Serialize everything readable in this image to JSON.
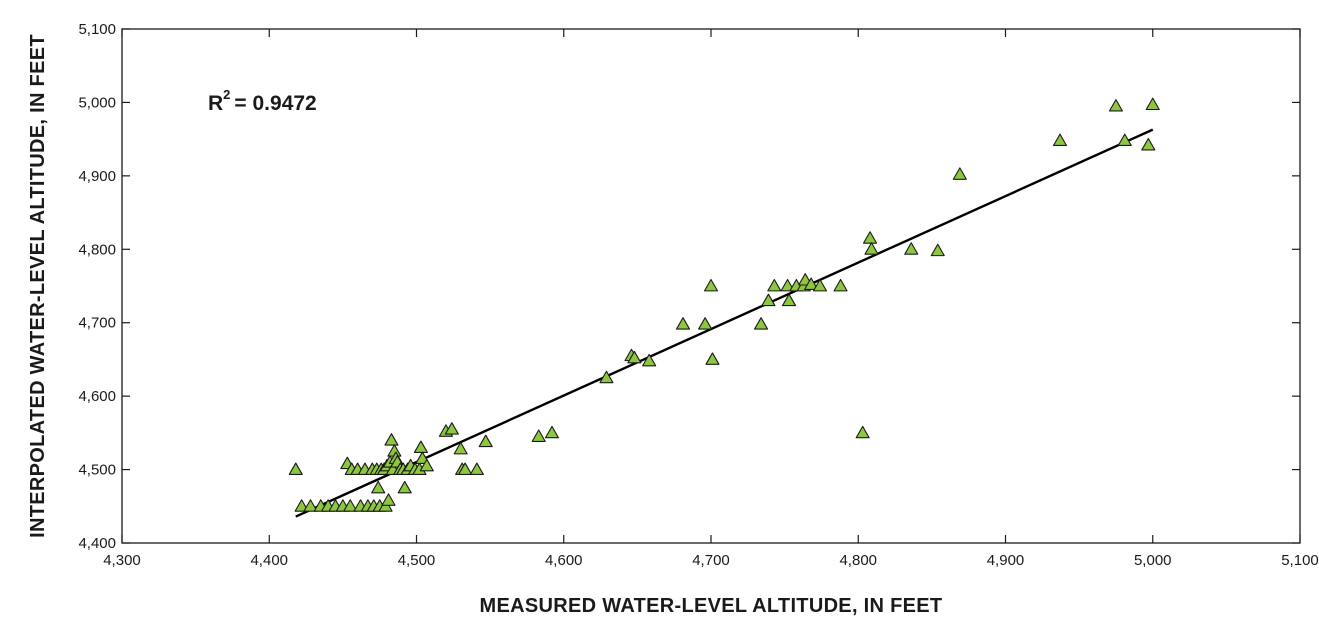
{
  "chart_data": {
    "type": "scatter",
    "xlabel": "MEASURED WATER-LEVEL ALTITUDE, IN FEET",
    "ylabel": "INTERPOLATED WATER-LEVEL ALTITUDE, IN FEET",
    "xlim": [
      4300,
      5100
    ],
    "ylim": [
      4400,
      5100
    ],
    "x_ticks": [
      4300,
      4400,
      4500,
      4600,
      4700,
      4800,
      4900,
      5000,
      5100
    ],
    "y_ticks": [
      4400,
      4500,
      4600,
      4700,
      4800,
      4900,
      5000,
      5100
    ],
    "x_tick_labels": [
      "4,300",
      "4,400",
      "4,500",
      "4,600",
      "4,700",
      "4,800",
      "4,900",
      "5,000",
      "5,100"
    ],
    "y_tick_labels": [
      "4,400",
      "4,500",
      "4,600",
      "4,700",
      "4,800",
      "4,900",
      "5,000",
      "5,100"
    ],
    "grid": false,
    "annotation": {
      "label": "R",
      "superscript": "2",
      "value": "= 0.9472"
    },
    "marker": {
      "shape": "triangle",
      "fill": "#8dc63f",
      "stroke": "#1a1a1a"
    },
    "line_color": "#000000",
    "trendline": {
      "x": [
        4418,
        5000
      ],
      "y": [
        4436,
        4963
      ]
    },
    "points": [
      [
        4418,
        4500
      ],
      [
        4422,
        4450
      ],
      [
        4428,
        4450
      ],
      [
        4435,
        4450
      ],
      [
        4440,
        4450
      ],
      [
        4445,
        4450
      ],
      [
        4450,
        4450
      ],
      [
        4453,
        4508
      ],
      [
        4455,
        4450
      ],
      [
        4456,
        4500
      ],
      [
        4460,
        4500
      ],
      [
        4462,
        4450
      ],
      [
        4465,
        4500
      ],
      [
        4467,
        4450
      ],
      [
        4470,
        4500
      ],
      [
        4471,
        4450
      ],
      [
        4473,
        4500
      ],
      [
        4474,
        4475
      ],
      [
        4475,
        4450
      ],
      [
        4476,
        4500
      ],
      [
        4478,
        4500
      ],
      [
        4479,
        4450
      ],
      [
        4480,
        4505
      ],
      [
        4481,
        4458
      ],
      [
        4482,
        4510
      ],
      [
        4483,
        4540
      ],
      [
        4484,
        4500
      ],
      [
        4485,
        4525
      ],
      [
        4486,
        4515
      ],
      [
        4487,
        4510
      ],
      [
        4489,
        4500
      ],
      [
        4491,
        4500
      ],
      [
        4492,
        4475
      ],
      [
        4494,
        4500
      ],
      [
        4496,
        4505
      ],
      [
        4499,
        4500
      ],
      [
        4502,
        4500
      ],
      [
        4503,
        4530
      ],
      [
        4504,
        4515
      ],
      [
        4507,
        4505
      ],
      [
        4520,
        4552
      ],
      [
        4524,
        4555
      ],
      [
        4530,
        4528
      ],
      [
        4531,
        4500
      ],
      [
        4533,
        4500
      ],
      [
        4541,
        4500
      ],
      [
        4547,
        4538
      ],
      [
        4583,
        4545
      ],
      [
        4592,
        4550
      ],
      [
        4629,
        4625
      ],
      [
        4646,
        4655
      ],
      [
        4648,
        4652
      ],
      [
        4658,
        4648
      ],
      [
        4681,
        4698
      ],
      [
        4696,
        4698
      ],
      [
        4700,
        4750
      ],
      [
        4701,
        4650
      ],
      [
        4734,
        4698
      ],
      [
        4739,
        4730
      ],
      [
        4743,
        4750
      ],
      [
        4752,
        4750
      ],
      [
        4753,
        4730
      ],
      [
        4758,
        4750
      ],
      [
        4763,
        4750
      ],
      [
        4764,
        4758
      ],
      [
        4768,
        4752
      ],
      [
        4774,
        4750
      ],
      [
        4788,
        4750
      ],
      [
        4803,
        4550
      ],
      [
        4808,
        4815
      ],
      [
        4809,
        4800
      ],
      [
        4836,
        4800
      ],
      [
        4854,
        4798
      ],
      [
        4869,
        4902
      ],
      [
        4937,
        4948
      ],
      [
        4975,
        4995
      ],
      [
        4981,
        4948
      ],
      [
        4997,
        4942
      ],
      [
        5000,
        4997
      ]
    ]
  }
}
